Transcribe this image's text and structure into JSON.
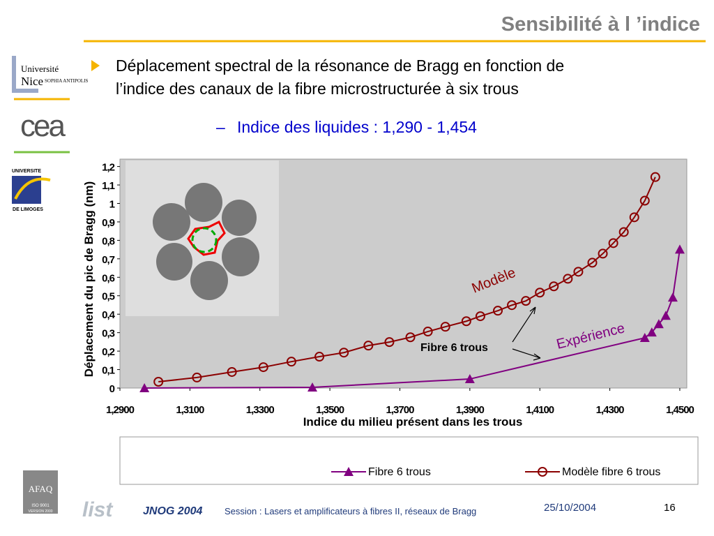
{
  "slide": {
    "title": "Sensibilité à l ’indice",
    "bullet": [
      "Déplacement spectral de la résonance de Bragg en fonction de",
      "l’indice des canaux de la fibre microstructurée à six trous"
    ],
    "sub_bullet": "Indice des liquides : 1,290 - 1,454",
    "logos": {
      "unice": [
        "Université",
        "Nice",
        "SOPHIA ANTIPOLIS"
      ],
      "cea": "cea",
      "limoges": [
        "UNIVERSITE",
        "DE LIMOGES"
      ],
      "afaq": [
        "AFAQ",
        "ISO 9001",
        "VERSION 2000"
      ],
      "list": "list"
    },
    "footer": {
      "event": "JNOG 2004",
      "session": "Session : Lasers et amplificateurs à fibres II, réseaux de Bragg",
      "date": "25/10/2004",
      "page": "16"
    }
  },
  "chart_data": {
    "type": "line",
    "y_label": "Déplacement du pic de Bragg (nm)",
    "x_label": "Indice du milieu présent dans les trous",
    "annotations": {
      "model": "Modèle",
      "experiment": "Expérience",
      "fiber": "Fibre 6 trous"
    },
    "xlim": [
      1.29,
      1.452
    ],
    "ylim": [
      0,
      1.24
    ],
    "xticks": [
      {
        "value": 1.29,
        "label": "1,2900"
      },
      {
        "value": 1.31,
        "label": "1,3100"
      },
      {
        "value": 1.33,
        "label": "1,3300"
      },
      {
        "value": 1.35,
        "label": "1,3500"
      },
      {
        "value": 1.37,
        "label": "1,3700"
      },
      {
        "value": 1.39,
        "label": "1,3900"
      },
      {
        "value": 1.41,
        "label": "1,4100"
      },
      {
        "value": 1.43,
        "label": "1,4300"
      },
      {
        "value": 1.45,
        "label": "1,4500"
      }
    ],
    "yticks": [
      0,
      {
        "value": 0.1,
        "label": "0,1"
      },
      {
        "value": 0.2,
        "label": "0,2"
      },
      {
        "value": 0.3,
        "label": "0,3"
      },
      {
        "value": 0.4,
        "label": "0,4"
      },
      {
        "value": 0.5,
        "label": "0,5"
      },
      {
        "value": 0.6,
        "label": "0,6"
      },
      {
        "value": 0.7,
        "label": "0,7"
      },
      {
        "value": 0.8,
        "label": "0,8"
      },
      {
        "value": 0.9,
        "label": "0,9"
      },
      1,
      {
        "value": 1.1,
        "label": "1,1"
      },
      {
        "value": 1.2,
        "label": "1,2"
      }
    ],
    "series": [
      {
        "name": "Fibre 6 trous",
        "color": "#800080",
        "marker": "triangle",
        "x": [
          1.297,
          1.345,
          1.39,
          1.44,
          1.442,
          1.444,
          1.446,
          1.448,
          1.45
        ],
        "values": [
          0.0,
          0.004,
          0.049,
          0.272,
          0.302,
          0.347,
          0.392,
          0.491,
          0.751
        ]
      },
      {
        "name": "Modèle fibre 6 trous",
        "color": "#8b0000",
        "marker": "circle",
        "x": [
          1.301,
          1.312,
          1.322,
          1.331,
          1.339,
          1.347,
          1.354,
          1.361,
          1.367,
          1.373,
          1.378,
          1.383,
          1.389,
          1.393,
          1.398,
          1.402,
          1.406,
          1.41,
          1.414,
          1.418,
          1.421,
          1.425,
          1.428,
          1.431,
          1.434,
          1.437,
          1.44,
          1.443
        ],
        "values": [
          0.034,
          0.057,
          0.087,
          0.113,
          0.143,
          0.17,
          0.192,
          0.23,
          0.249,
          0.275,
          0.306,
          0.332,
          0.362,
          0.389,
          0.419,
          0.449,
          0.472,
          0.517,
          0.551,
          0.592,
          0.63,
          0.679,
          0.728,
          0.785,
          0.845,
          0.925,
          1.015,
          1.143
        ]
      }
    ]
  }
}
